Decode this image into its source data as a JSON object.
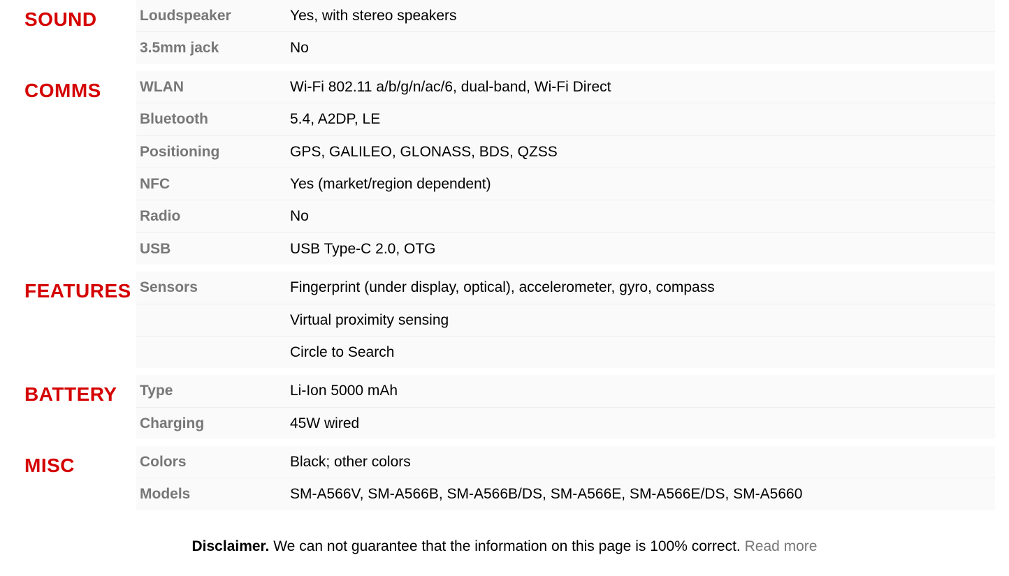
{
  "colors": {
    "section_header": "#d50000",
    "label_text": "#777777",
    "value_text": "#000000",
    "row_bg": "#fafafa",
    "row_border": "#eeeeee",
    "link_text": "#777777"
  },
  "sections": [
    {
      "title": "SOUND",
      "rows": [
        {
          "label": "Loudspeaker",
          "value": "Yes, with stereo speakers"
        },
        {
          "label": "3.5mm jack",
          "value": "No"
        }
      ]
    },
    {
      "title": "COMMS",
      "rows": [
        {
          "label": "WLAN",
          "value": "Wi-Fi 802.11 a/b/g/n/ac/6, dual-band, Wi-Fi Direct"
        },
        {
          "label": "Bluetooth",
          "value": "5.4, A2DP, LE"
        },
        {
          "label": "Positioning",
          "value": "GPS, GALILEO, GLONASS, BDS, QZSS"
        },
        {
          "label": "NFC",
          "value": "Yes (market/region dependent)"
        },
        {
          "label": "Radio",
          "value": "No"
        },
        {
          "label": "USB",
          "value": "USB Type-C 2.0, OTG"
        }
      ]
    },
    {
      "title": "FEATURES",
      "rows": [
        {
          "label": "Sensors",
          "value": "Fingerprint (under display, optical), accelerometer, gyro, compass"
        },
        {
          "label": "",
          "value": "Virtual proximity sensing"
        },
        {
          "label": "",
          "value": "Circle to Search"
        }
      ]
    },
    {
      "title": "BATTERY",
      "rows": [
        {
          "label": "Type",
          "value": "Li-Ion 5000 mAh"
        },
        {
          "label": "Charging",
          "value": "45W wired"
        }
      ]
    },
    {
      "title": "MISC",
      "rows": [
        {
          "label": "Colors",
          "value": "Black; other colors"
        },
        {
          "label": "Models",
          "value": "SM-A566V, SM-A566B, SM-A566B/DS, SM-A566E, SM-A566E/DS, SM-A5660"
        }
      ]
    }
  ],
  "disclaimer": {
    "bold": "Disclaimer.",
    "text": " We can not guarantee that the information on this page is 100% correct. ",
    "link": "Read more"
  }
}
